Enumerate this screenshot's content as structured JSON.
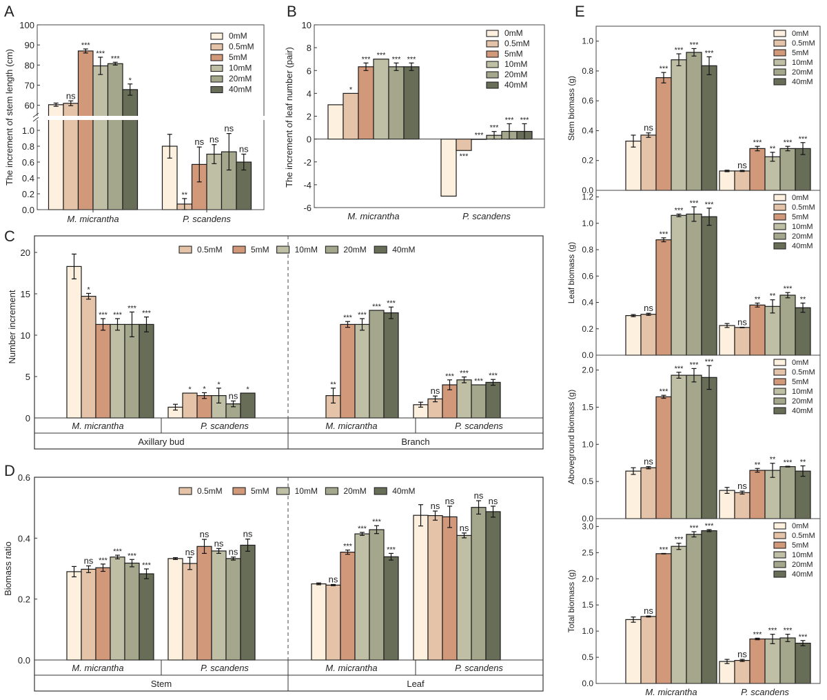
{
  "figure": {
    "treatments": [
      "0mM",
      "0.5mM",
      "5mM",
      "10mM",
      "20mM",
      "40mM"
    ],
    "colors": {
      "0mM": "#FDF0DE",
      "0.5mM": "#E4C3A8",
      "5mM": "#D2987A",
      "10mM": "#BFBFA6",
      "20mM": "#A4A78C",
      "40mM": "#686D58"
    }
  },
  "chart_data": [
    {
      "panel": "A",
      "type": "bar",
      "ylabel": "The increment of stem length (cm)",
      "axis_break": true,
      "lower_ylim": [
        0,
        1.2
      ],
      "lower_ticks": [
        "0.0",
        "0.2",
        "0.4",
        "0.6",
        "0.8",
        "1.0"
      ],
      "upper_ylim": [
        52,
        100
      ],
      "upper_ticks": [
        "60",
        "70",
        "80",
        "90",
        "100"
      ],
      "categories": [
        "M. micrantha",
        "P. scandens"
      ],
      "legend": [
        "0mM",
        "0.5mM",
        "5mM",
        "10mM",
        "20mM",
        "40mM"
      ],
      "legend_position": "top-right",
      "series": [
        {
          "name": "0mM",
          "values": [
            60.3,
            0.8
          ],
          "errors": [
            0.8,
            0.15
          ],
          "sig": [
            "",
            ""
          ]
        },
        {
          "name": "0.5mM",
          "values": [
            61.0,
            0.07
          ],
          "errors": [
            1.2,
            0.07
          ],
          "sig": [
            "ns",
            "**"
          ]
        },
        {
          "name": "5mM",
          "values": [
            87.0,
            0.57
          ],
          "errors": [
            1.0,
            0.22
          ],
          "sig": [
            "***",
            "ns"
          ]
        },
        {
          "name": "10mM",
          "values": [
            79.6,
            0.7
          ],
          "errors": [
            4.3,
            0.12
          ],
          "sig": [
            "***",
            "ns"
          ]
        },
        {
          "name": "20mM",
          "values": [
            80.7,
            0.73
          ],
          "errors": [
            0.7,
            0.23
          ],
          "sig": [
            "***",
            "ns"
          ]
        },
        {
          "name": "40mM",
          "values": [
            67.8,
            0.6
          ],
          "errors": [
            2.8,
            0.1
          ],
          "sig": [
            "*",
            "ns"
          ]
        }
      ]
    },
    {
      "panel": "B",
      "type": "bar",
      "ylabel": "The increment of leaf number (pair)",
      "ylim": [
        -6,
        10
      ],
      "ticks": [
        "-6",
        "-4",
        "-2",
        "0",
        "2",
        "4",
        "6",
        "8",
        "10"
      ],
      "categories": [
        "M. micrantha",
        "P. scandens"
      ],
      "legend": [
        "0mM",
        "0.5mM",
        "5mM",
        "10mM",
        "20mM",
        "40mM"
      ],
      "legend_position": "top-right",
      "series": [
        {
          "name": "0mM",
          "values": [
            3.0,
            -5.0
          ],
          "errors": [
            0,
            0
          ],
          "sig": [
            "",
            ""
          ]
        },
        {
          "name": "0.5mM",
          "values": [
            4.0,
            -1.0
          ],
          "errors": [
            0,
            0
          ],
          "sig": [
            "*",
            "***"
          ]
        },
        {
          "name": "5mM",
          "values": [
            6.33,
            0.0
          ],
          "errors": [
            0.33,
            0
          ],
          "sig": [
            "***",
            "***"
          ]
        },
        {
          "name": "10mM",
          "values": [
            7.0,
            0.33
          ],
          "errors": [
            0,
            0.33
          ],
          "sig": [
            "***",
            "***"
          ]
        },
        {
          "name": "20mM",
          "values": [
            6.33,
            0.67
          ],
          "errors": [
            0.33,
            0.67
          ],
          "sig": [
            "***",
            "***"
          ]
        },
        {
          "name": "40mM",
          "values": [
            6.33,
            0.67
          ],
          "errors": [
            0.33,
            0.67
          ],
          "sig": [
            "***",
            "***"
          ]
        }
      ]
    },
    {
      "panel": "C",
      "type": "bar",
      "ylabel": "Number increment",
      "ylim": [
        0,
        22
      ],
      "ticks": [
        "0",
        "5",
        "10",
        "15",
        "20"
      ],
      "groups": [
        "Axillary bud",
        "Branch"
      ],
      "categories": [
        "M. micrantha",
        "P. scandens",
        "M. micrantha",
        "P. scandens"
      ],
      "legend": [
        "0.5mM",
        "5mM",
        "10mM",
        "20mM",
        "40mM"
      ],
      "legend_position": "top-center",
      "series": [
        {
          "name": "0mM",
          "values": [
            18.3,
            1.3,
            null,
            1.6
          ],
          "errors": [
            1.5,
            0.35,
            0,
            0.3
          ],
          "sig": [
            "",
            "",
            "",
            ""
          ]
        },
        {
          "name": "0.5mM",
          "values": [
            14.7,
            3.0,
            2.7,
            2.3
          ],
          "errors": [
            0.35,
            0,
            0.9,
            0.35
          ],
          "sig": [
            "*",
            "*",
            "**",
            "ns"
          ]
        },
        {
          "name": "5mM",
          "values": [
            11.3,
            2.7,
            11.3,
            4.0
          ],
          "errors": [
            0.7,
            0.35,
            0.35,
            0.6
          ],
          "sig": [
            "***",
            "*",
            "***",
            "***"
          ]
        },
        {
          "name": "10mM",
          "values": [
            11.3,
            2.7,
            11.3,
            4.6
          ],
          "errors": [
            0.7,
            0.9,
            0.7,
            0.35
          ],
          "sig": [
            "***",
            "*",
            "***",
            "***"
          ]
        },
        {
          "name": "20mM",
          "values": [
            11.3,
            1.7,
            13.0,
            4.0
          ],
          "errors": [
            1.5,
            0.35,
            0,
            0
          ],
          "sig": [
            "***",
            "ns",
            "***",
            "***"
          ]
        },
        {
          "name": "40mM",
          "values": [
            11.3,
            3.0,
            12.7,
            4.3
          ],
          "errors": [
            0.9,
            0,
            0.7,
            0.35
          ],
          "sig": [
            "***",
            "*",
            "***",
            "***"
          ]
        }
      ]
    },
    {
      "panel": "D",
      "type": "bar",
      "ylabel": "Biomass ratio",
      "ylim": [
        0,
        0.6
      ],
      "ticks": [
        "0.0",
        "0.2",
        "0.4",
        "0.6"
      ],
      "groups": [
        "Stem",
        "Leaf"
      ],
      "categories": [
        "M. micrantha",
        "P. scandens",
        "M. micrantha",
        "P. scandens"
      ],
      "legend": [
        "0.5mM",
        "5mM",
        "10mM",
        "20mM",
        "40mM"
      ],
      "legend_position": "top-center",
      "series": [
        {
          "name": "0mM",
          "values": [
            0.29,
            0.333,
            0.25,
            0.475
          ],
          "errors": [
            0.017,
            0.003,
            0.003,
            0.035
          ],
          "sig": [
            "",
            "",
            "",
            ""
          ]
        },
        {
          "name": "0.5mM",
          "values": [
            0.298,
            0.317,
            0.246,
            0.474
          ],
          "errors": [
            0.011,
            0.02,
            0.002,
            0.015
          ],
          "sig": [
            "ns",
            "ns",
            "ns",
            "ns"
          ]
        },
        {
          "name": "5mM",
          "values": [
            0.303,
            0.373,
            0.354,
            0.47
          ],
          "errors": [
            0.012,
            0.023,
            0.007,
            0.035
          ],
          "sig": [
            "***",
            "ns",
            "***",
            "ns"
          ]
        },
        {
          "name": "10mM",
          "values": [
            0.338,
            0.358,
            0.414,
            0.409
          ],
          "errors": [
            0.006,
            0.008,
            0.005,
            0.008
          ],
          "sig": [
            "***",
            "ns",
            "***",
            "ns"
          ]
        },
        {
          "name": "20mM",
          "values": [
            0.318,
            0.333,
            0.428,
            0.501
          ],
          "errors": [
            0.012,
            0.005,
            0.013,
            0.022
          ],
          "sig": [
            "***",
            "ns",
            "***",
            "ns"
          ]
        },
        {
          "name": "40mM",
          "values": [
            0.283,
            0.377,
            0.339,
            0.487
          ],
          "errors": [
            0.016,
            0.02,
            0.011,
            0.018
          ],
          "sig": [
            "***",
            "ns",
            "***",
            "ns"
          ]
        }
      ]
    },
    {
      "panel": "E1",
      "type": "bar",
      "ylabel": "Stem biomass (g)",
      "ylim": [
        0,
        1.1
      ],
      "ticks": [
        "0.0",
        "0.2",
        "0.4",
        "0.6",
        "0.8",
        "1.0"
      ],
      "categories": [
        "M. micrantha",
        "P. scandens"
      ],
      "legend": [
        "0mM",
        "0.5mM",
        "5mM",
        "10mM",
        "20mM",
        "40mM"
      ],
      "legend_position": "top-right",
      "series": [
        {
          "name": "0mM",
          "values": [
            0.33,
            0.13
          ],
          "errors": [
            0.04,
            0.005
          ],
          "sig": [
            "",
            ""
          ]
        },
        {
          "name": "0.5mM",
          "values": [
            0.37,
            0.13
          ],
          "errors": [
            0.015,
            0.004
          ],
          "sig": [
            "ns",
            "ns"
          ]
        },
        {
          "name": "5mM",
          "values": [
            0.755,
            0.28
          ],
          "errors": [
            0.035,
            0.015
          ],
          "sig": [
            "***",
            "***"
          ]
        },
        {
          "name": "10mM",
          "values": [
            0.875,
            0.225
          ],
          "errors": [
            0.04,
            0.03
          ],
          "sig": [
            "***",
            "**"
          ]
        },
        {
          "name": "20mM",
          "values": [
            0.925,
            0.28
          ],
          "errors": [
            0.025,
            0.015
          ],
          "sig": [
            "***",
            "***"
          ]
        },
        {
          "name": "40mM",
          "values": [
            0.835,
            0.28
          ],
          "errors": [
            0.06,
            0.04
          ],
          "sig": [
            "***",
            "***"
          ]
        }
      ]
    },
    {
      "panel": "E2",
      "type": "bar",
      "ylabel": "Leaf biomass (g)",
      "ylim": [
        0,
        1.25
      ],
      "ticks": [
        "0.0",
        "0.2",
        "0.4",
        "0.6",
        "0.8",
        "1.0",
        "1.2"
      ],
      "categories": [
        "M. micrantha",
        "P. scandens"
      ],
      "legend": [
        "0mM",
        "0.5mM",
        "5mM",
        "10mM",
        "20mM",
        "40mM"
      ],
      "legend_position": "top-right",
      "series": [
        {
          "name": "0mM",
          "values": [
            0.3,
            0.225
          ],
          "errors": [
            0.008,
            0.015
          ],
          "sig": [
            "",
            ""
          ]
        },
        {
          "name": "0.5mM",
          "values": [
            0.31,
            0.21
          ],
          "errors": [
            0.008,
            0.002
          ],
          "sig": [
            "ns",
            "ns"
          ]
        },
        {
          "name": "5mM",
          "values": [
            0.875,
            0.38
          ],
          "errors": [
            0.015,
            0.015
          ],
          "sig": [
            "***",
            "**"
          ]
        },
        {
          "name": "10mM",
          "values": [
            1.06,
            0.37
          ],
          "errors": [
            0.01,
            0.05
          ],
          "sig": [
            "***",
            "**"
          ]
        },
        {
          "name": "20mM",
          "values": [
            1.07,
            0.455
          ],
          "errors": [
            0.055,
            0.02
          ],
          "sig": [
            "***",
            "***"
          ]
        },
        {
          "name": "40mM",
          "values": [
            1.05,
            0.36
          ],
          "errors": [
            0.065,
            0.035
          ],
          "sig": [
            "***",
            "**"
          ]
        }
      ]
    },
    {
      "panel": "E3",
      "type": "bar",
      "ylabel": "Aboveground biomass (g)",
      "ylim": [
        0,
        2.2
      ],
      "ticks": [
        "0.0",
        "0.5",
        "1.0",
        "1.5",
        "2.0"
      ],
      "categories": [
        "M. micrantha",
        "P. scandens"
      ],
      "legend": [
        "0mM",
        "0.5mM",
        "5mM",
        "10mM",
        "20mM",
        "40mM"
      ],
      "legend_position": "top-right",
      "series": [
        {
          "name": "0mM",
          "values": [
            0.64,
            0.38
          ],
          "errors": [
            0.045,
            0.04
          ],
          "sig": [
            "",
            ""
          ]
        },
        {
          "name": "0.5mM",
          "values": [
            0.685,
            0.35
          ],
          "errors": [
            0.015,
            0.02
          ],
          "sig": [
            "ns",
            "ns"
          ]
        },
        {
          "name": "5mM",
          "values": [
            1.64,
            0.65
          ],
          "errors": [
            0.02,
            0.025
          ],
          "sig": [
            "***",
            "**"
          ]
        },
        {
          "name": "10mM",
          "values": [
            1.93,
            0.65
          ],
          "errors": [
            0.04,
            0.095
          ],
          "sig": [
            "***",
            "**"
          ]
        },
        {
          "name": "20mM",
          "values": [
            1.93,
            0.7
          ],
          "errors": [
            0.09,
            0.005
          ],
          "sig": [
            "***",
            "***"
          ]
        },
        {
          "name": "40mM",
          "values": [
            1.9,
            0.64
          ],
          "errors": [
            0.16,
            0.07
          ],
          "sig": [
            "***",
            "**"
          ]
        }
      ]
    },
    {
      "panel": "E4",
      "type": "bar",
      "ylabel": "Total biomass (g)",
      "ylim": [
        0,
        3.15
      ],
      "ticks": [
        "0.0",
        "0.5",
        "1.0",
        "1.5",
        "2.0",
        "2.5",
        "3.0"
      ],
      "categories": [
        "M. micrantha",
        "P. scandens"
      ],
      "legend": [
        "0mM",
        "0.5mM",
        "5mM",
        "10mM",
        "20mM",
        "40mM"
      ],
      "legend_position": "top-right",
      "series": [
        {
          "name": "0mM",
          "values": [
            1.22,
            0.42
          ],
          "errors": [
            0.05,
            0.04
          ],
          "sig": [
            "",
            ""
          ]
        },
        {
          "name": "0.5mM",
          "values": [
            1.28,
            0.44
          ],
          "errors": [
            0.01,
            0.02
          ],
          "sig": [
            "ns",
            "ns"
          ]
        },
        {
          "name": "5mM",
          "values": [
            2.48,
            0.85
          ],
          "errors": [
            0.005,
            0.015
          ],
          "sig": [
            "***",
            "***"
          ]
        },
        {
          "name": "10mM",
          "values": [
            2.62,
            0.85
          ],
          "errors": [
            0.06,
            0.09
          ],
          "sig": [
            "***",
            "***"
          ]
        },
        {
          "name": "20mM",
          "values": [
            2.85,
            0.87
          ],
          "errors": [
            0.05,
            0.07
          ],
          "sig": [
            "***",
            "***"
          ]
        },
        {
          "name": "40mM",
          "values": [
            2.92,
            0.77
          ],
          "errors": [
            0.02,
            0.05
          ],
          "sig": [
            "***",
            "***"
          ]
        }
      ]
    }
  ]
}
